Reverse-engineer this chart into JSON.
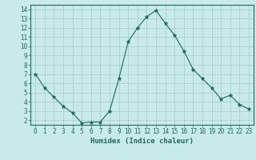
{
  "x": [
    0,
    1,
    2,
    3,
    4,
    5,
    6,
    7,
    8,
    9,
    10,
    11,
    12,
    13,
    14,
    15,
    16,
    17,
    18,
    19,
    20,
    21,
    22,
    23
  ],
  "y": [
    7.0,
    5.5,
    4.5,
    3.5,
    2.8,
    1.7,
    1.8,
    1.8,
    3.0,
    6.5,
    10.5,
    12.0,
    13.2,
    13.9,
    12.5,
    11.2,
    9.5,
    7.5,
    6.5,
    5.5,
    4.3,
    4.7,
    3.7,
    3.2
  ],
  "line_color": "#1a6b5a",
  "marker": "*",
  "marker_size": 3.5,
  "bg_color": "#c8eaea",
  "grid_color": "#aacaca",
  "xlabel": "Humidex (Indice chaleur)",
  "xlim": [
    -0.5,
    23.5
  ],
  "ylim": [
    1.5,
    14.5
  ],
  "yticks": [
    2,
    3,
    4,
    5,
    6,
    7,
    8,
    9,
    10,
    11,
    12,
    13,
    14
  ],
  "xticks": [
    0,
    1,
    2,
    3,
    4,
    5,
    6,
    7,
    8,
    9,
    10,
    11,
    12,
    13,
    14,
    15,
    16,
    17,
    18,
    19,
    20,
    21,
    22,
    23
  ],
  "font_color": "#1a6b5a",
  "label_fontsize": 6.5,
  "tick_fontsize": 5.5
}
